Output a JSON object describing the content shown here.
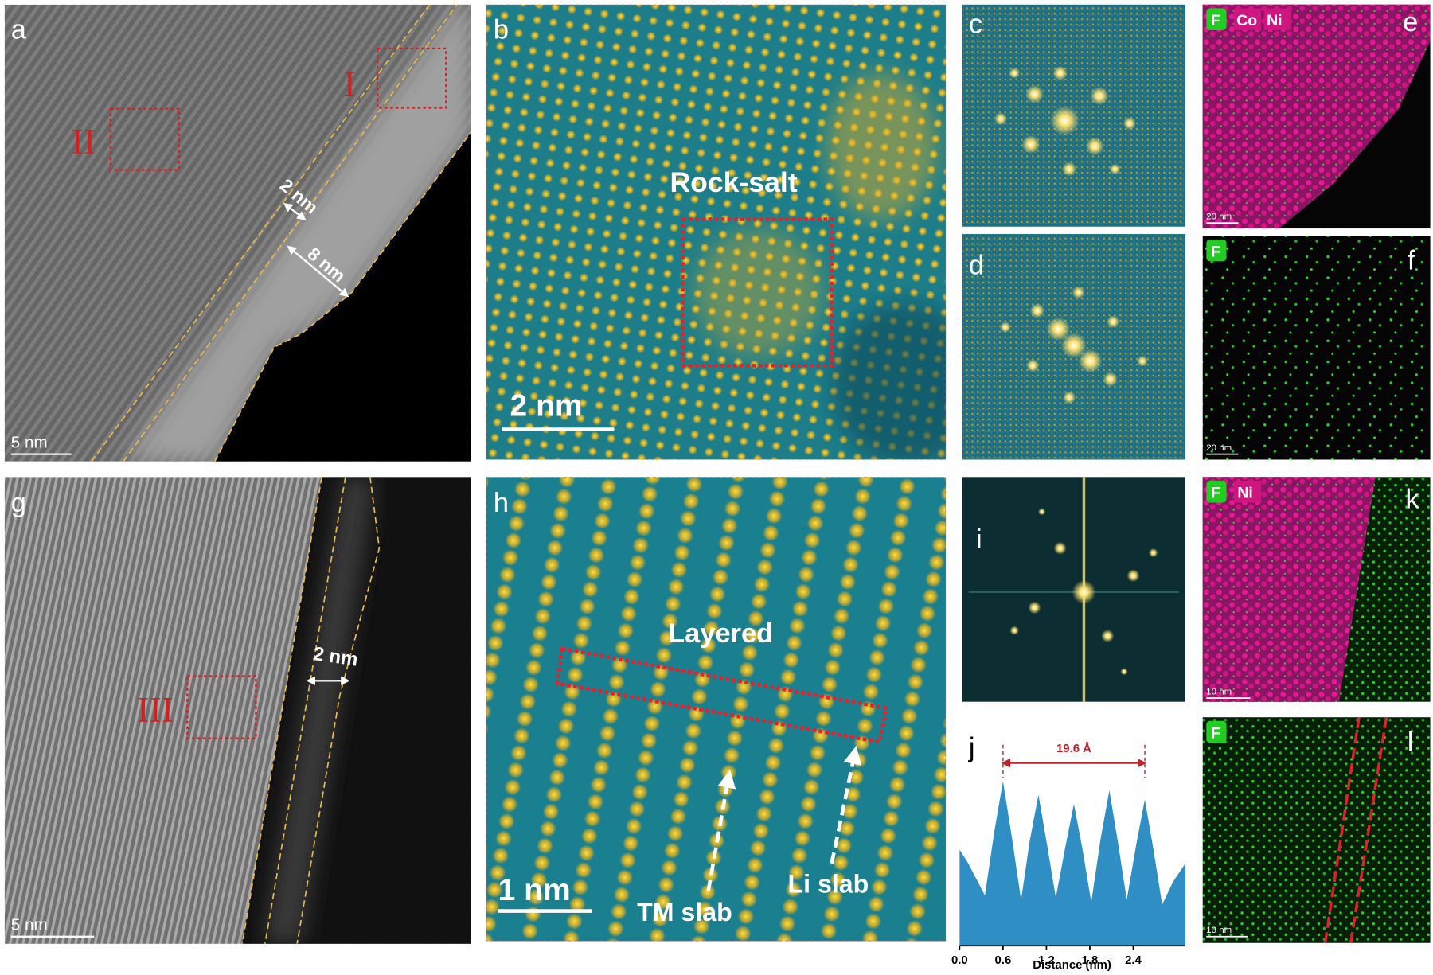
{
  "panels": {
    "a": {
      "label": "a",
      "regions": [
        "I",
        "II"
      ],
      "widths": [
        "2 nm",
        "8 nm"
      ],
      "scale_bar": "5 nm"
    },
    "b": {
      "label": "b",
      "phase": "Rock-salt",
      "scale_bar": "2 nm"
    },
    "c": {
      "label": "c"
    },
    "d": {
      "label": "d"
    },
    "e": {
      "label": "e",
      "elements": [
        "F",
        "Co",
        "Ni"
      ],
      "scale_bar": "20 nm"
    },
    "f": {
      "label": "f",
      "elements": [
        "F"
      ],
      "scale_bar": "20 nm"
    },
    "g": {
      "label": "g",
      "regions": [
        "III"
      ],
      "widths": [
        "2 nm"
      ],
      "scale_bar": "5 nm"
    },
    "h": {
      "label": "h",
      "phase": "Layered",
      "scale_bar": "1 nm",
      "slabs": [
        "TM slab",
        "Li slab"
      ]
    },
    "i": {
      "label": "i"
    },
    "j": {
      "label": "j",
      "chart_data": {
        "type": "area",
        "x_label": "Distance (nm)",
        "annotation": "19.6 Å",
        "color": "#2f8fc4",
        "x": [
          0,
          0.12,
          0.35,
          0.48,
          0.6,
          0.72,
          0.85,
          0.97,
          1.09,
          1.21,
          1.33,
          1.46,
          1.58,
          1.7,
          1.82,
          1.95,
          2.07,
          2.19,
          2.31,
          2.44,
          2.56,
          2.68,
          2.8,
          2.95,
          3.12
        ],
        "values": [
          42,
          36,
          22,
          50,
          72,
          48,
          20,
          46,
          66,
          44,
          21,
          43,
          62,
          42,
          19,
          47,
          68,
          45,
          20,
          44,
          64,
          42,
          18,
          28,
          36
        ],
        "xlim": [
          0,
          3.12
        ],
        "ylim": [
          0,
          100
        ],
        "xticks": [
          {
            "value": 0,
            "label": "0.0"
          },
          0.6,
          1.2,
          1.8,
          2.4
        ]
      }
    },
    "k": {
      "label": "k",
      "elements": [
        "F",
        "Ni"
      ],
      "scale_bar": "10 nm"
    },
    "l": {
      "label": "l",
      "elements": [
        "F"
      ],
      "scale_bar": "10 nm"
    }
  }
}
